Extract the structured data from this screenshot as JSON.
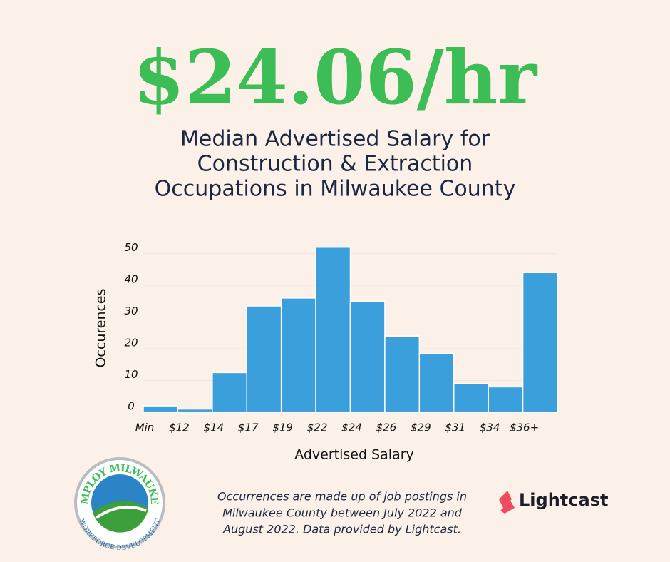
{
  "chart_data": {
    "type": "bar",
    "title": "$24.06/hr",
    "subtitle": [
      "Median Advertised Salary for",
      "Construction & Extraction",
      "Occupations in Milwaukee County"
    ],
    "ylabel": "Occurences",
    "xlabel": "Advertised Salary",
    "categories": [
      "Min",
      "$12",
      "$14",
      "$17",
      "$19",
      "$22",
      "$24",
      "$26",
      "$29",
      "$31",
      "$34",
      "$36+"
    ],
    "values": [
      2,
      1,
      12.5,
      33.5,
      36,
      52,
      35,
      24,
      18.5,
      9,
      8,
      44
    ],
    "color": "#3a9fda",
    "ylim": [
      0,
      58
    ],
    "yticks": [
      0,
      10,
      20,
      30,
      40,
      50
    ],
    "grid": true
  },
  "footnote": [
    "Occurrences are made up of job postings in",
    "Milwaukee County between July 2022 and",
    "August 2022. Data provided by Lightcast."
  ],
  "logos": {
    "employ": "EMPLOY MILWAUKEE",
    "workforce": "WORKFORCE DEVELOPMENT",
    "lightcast": "Lightcast"
  }
}
